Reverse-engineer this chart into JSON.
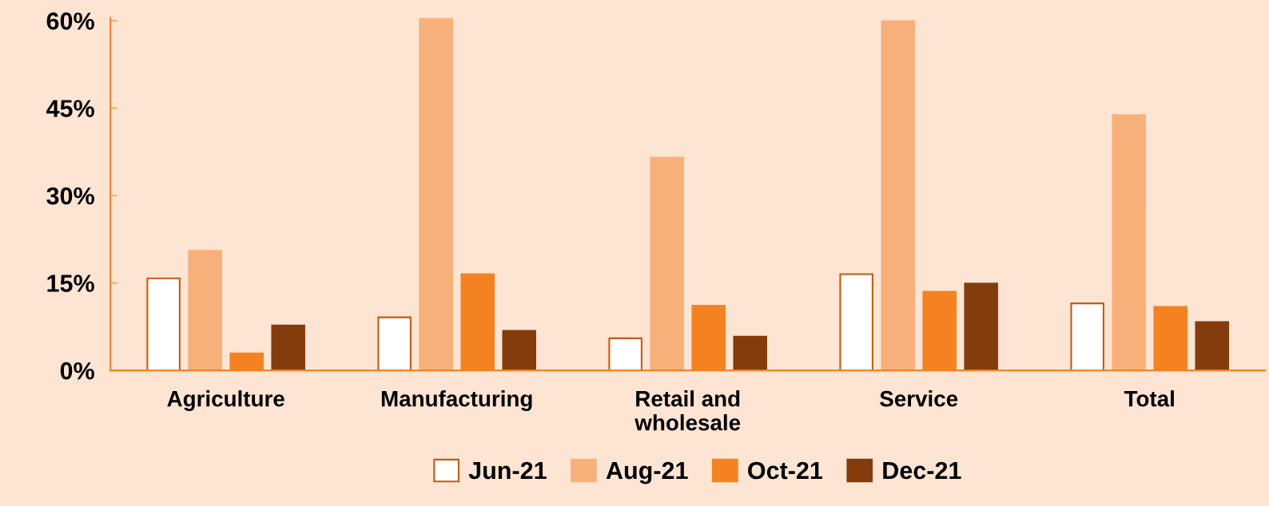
{
  "chart_data": {
    "type": "bar",
    "categories": [
      "Agriculture",
      "Manufacturing",
      "Retail and\nwholesale",
      "Service",
      "Total"
    ],
    "series": [
      {
        "name": "Jun-21",
        "color": "#ffffff",
        "values": [
          15.8,
          9.1,
          5.5,
          16.5,
          11.5
        ]
      },
      {
        "name": "Aug-21",
        "color": "#f8b07a",
        "values": [
          20.5,
          60.3,
          36.5,
          59.9,
          43.8
        ]
      },
      {
        "name": "Oct-21",
        "color": "#f58220",
        "values": [
          2.9,
          16.5,
          11.1,
          13.5,
          10.9
        ]
      },
      {
        "name": "Dec-21",
        "color": "#843c0c",
        "values": [
          7.7,
          6.8,
          5.8,
          14.9,
          8.3
        ]
      }
    ],
    "ylim": [
      0,
      60.5
    ],
    "yticks": [
      {
        "value": 0,
        "label": "0%"
      },
      {
        "value": 15,
        "label": "15%"
      },
      {
        "value": 30,
        "label": "30%"
      },
      {
        "value": 45,
        "label": "45%"
      },
      {
        "value": 60,
        "label": "60%"
      }
    ],
    "grid": false,
    "legend": "bottom"
  }
}
